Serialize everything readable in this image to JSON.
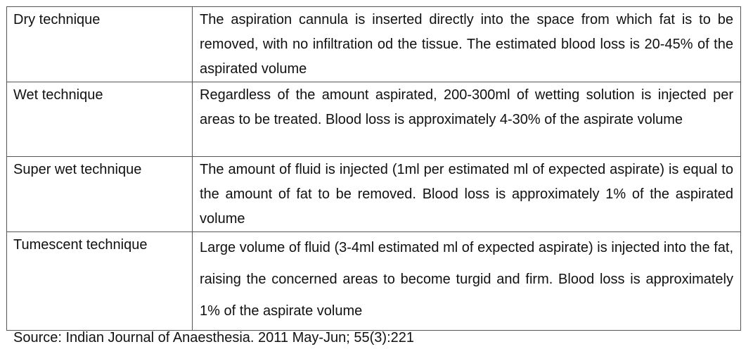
{
  "table": {
    "rows": [
      {
        "technique": "Dry technique",
        "description": "The aspiration cannula is inserted directly into the space from which fat is to be removed, with no infiltration od the tissue. The estimated blood loss is 20-45% of the aspirated volume"
      },
      {
        "technique": "Wet technique",
        "description": "Regardless of the amount aspirated, 200-300ml of wetting solution is injected per areas to be treated. Blood loss is approximately 4-30% of the aspirate volume"
      },
      {
        "technique": "Super wet technique",
        "description": "The amount of fluid is injected (1ml per estimated ml of expected aspirate) is equal to the amount of fat to be removed. Blood loss is approximately 1% of the aspirated volume"
      },
      {
        "technique": "Tumescent technique",
        "description": "Large volume of fluid (3-4ml estimated ml of expected aspirate) is injected into the fat, raising the concerned areas to become turgid and firm. Blood loss is approximately 1% of the aspirate volume"
      }
    ]
  },
  "source": "Source: Indian Journal of Anaesthesia. 2011 May-Jun; 55(3):221"
}
